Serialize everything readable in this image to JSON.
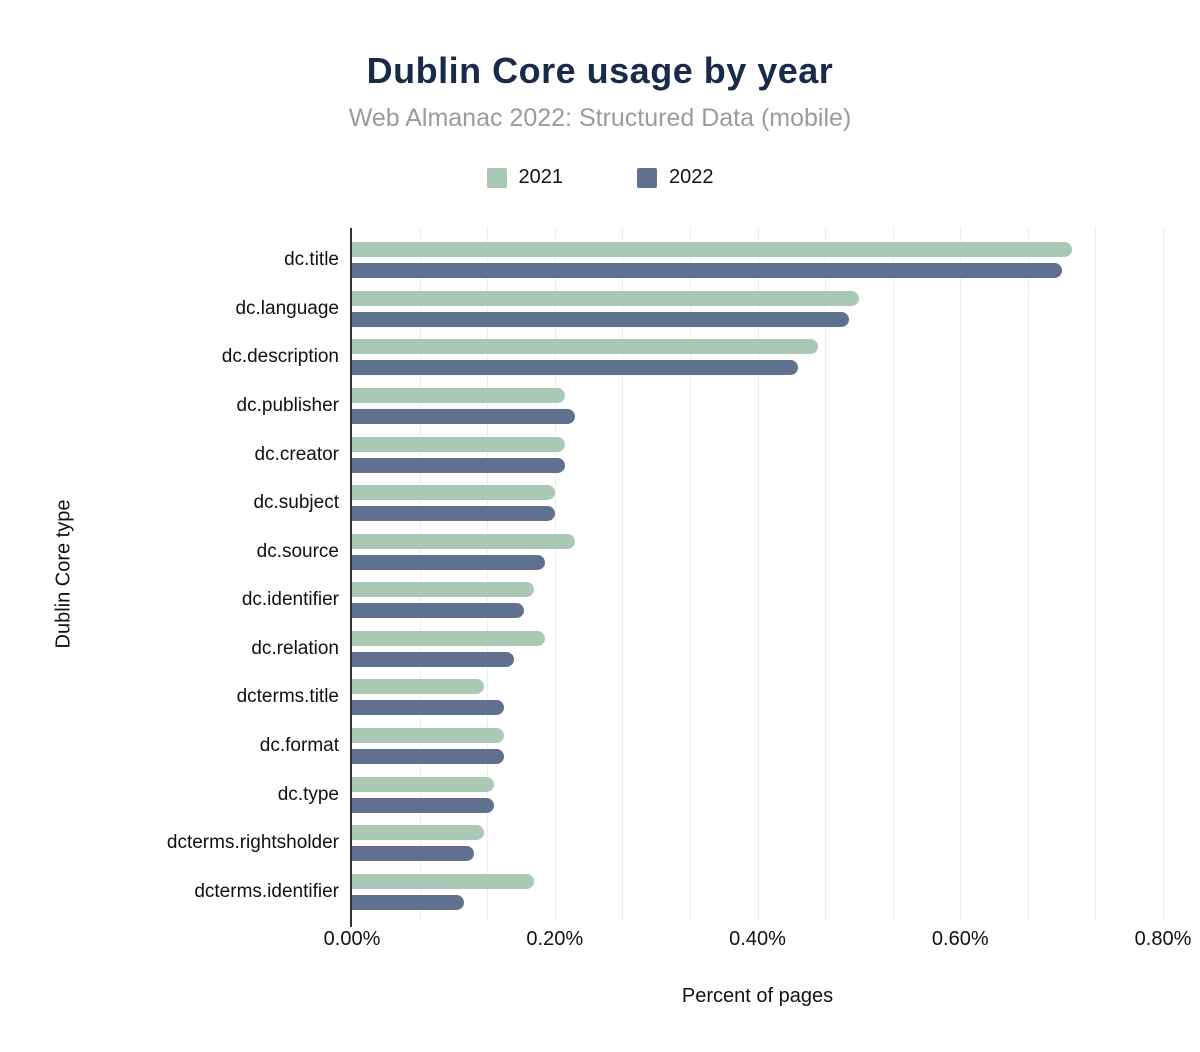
{
  "chart_data": {
    "type": "bar",
    "orientation": "horizontal",
    "title": "Dublin Core usage by year",
    "subtitle": "Web Almanac 2022: Structured Data (mobile)",
    "xlabel": "Percent of pages",
    "ylabel": "Dublin Core type",
    "x_ticks": [
      "0.00%",
      "0.20%",
      "0.40%",
      "0.60%",
      "0.80%"
    ],
    "xlim": [
      0,
      0.8
    ],
    "value_unit": "%",
    "grid": "on",
    "gridline_count": 12,
    "legend_position": "top",
    "categories": [
      "dc.title",
      "dc.language",
      "dc.description",
      "dc.publisher",
      "dc.creator",
      "dc.subject",
      "dc.source",
      "dc.identifier",
      "dc.relation",
      "dcterms.title",
      "dc.format",
      "dc.type",
      "dcterms.rightsholder",
      "dcterms.identifier"
    ],
    "series": [
      {
        "name": "2021",
        "color": "#a9c9b6",
        "values": [
          0.71,
          0.5,
          0.46,
          0.21,
          0.21,
          0.2,
          0.22,
          0.18,
          0.19,
          0.13,
          0.15,
          0.14,
          0.13,
          0.18
        ]
      },
      {
        "name": "2022",
        "color": "#60718f",
        "values": [
          0.7,
          0.49,
          0.44,
          0.22,
          0.21,
          0.2,
          0.19,
          0.17,
          0.16,
          0.15,
          0.15,
          0.14,
          0.12,
          0.11
        ]
      }
    ]
  },
  "colors": {
    "title": "#1a2b49",
    "subtitle": "#9b9b9b",
    "axis_line": "#333333",
    "gridline": "#ececec",
    "text": "#111111",
    "background": "#ffffff"
  }
}
